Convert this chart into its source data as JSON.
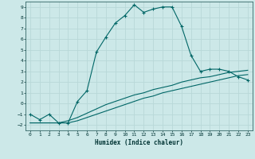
{
  "xlabel": "Humidex (Indice chaleur)",
  "bg_color": "#cce8e8",
  "grid_color": "#b8d8d8",
  "line_color": "#006666",
  "xlim": [
    -0.5,
    23.5
  ],
  "ylim": [
    -2.5,
    9.5
  ],
  "xticks": [
    0,
    1,
    2,
    3,
    4,
    5,
    6,
    7,
    8,
    9,
    10,
    11,
    12,
    13,
    14,
    15,
    16,
    17,
    18,
    19,
    20,
    21,
    22,
    23
  ],
  "yticks": [
    -2,
    -1,
    0,
    1,
    2,
    3,
    4,
    5,
    6,
    7,
    8,
    9
  ],
  "curve1_x": [
    0,
    1,
    2,
    3,
    4,
    5,
    6,
    7,
    8,
    9,
    10,
    11,
    12,
    13,
    14,
    15,
    16,
    17,
    18,
    19,
    20,
    21,
    22,
    23
  ],
  "curve1_y": [
    -1.0,
    -1.5,
    -1.0,
    -1.8,
    -1.8,
    0.2,
    1.2,
    4.8,
    6.2,
    7.5,
    8.2,
    9.2,
    8.5,
    8.8,
    9.0,
    9.0,
    7.2,
    4.5,
    3.0,
    3.2,
    3.2,
    3.0,
    2.5,
    2.2
  ],
  "curve2_x": [
    0,
    1,
    2,
    3,
    4,
    5,
    6,
    7,
    8,
    9,
    10,
    11,
    12,
    13,
    14,
    15,
    16,
    17,
    18,
    19,
    20,
    21,
    22,
    23
  ],
  "curve2_y": [
    -1.8,
    -1.8,
    -1.8,
    -1.8,
    -1.8,
    -1.6,
    -1.3,
    -1.0,
    -0.7,
    -0.4,
    -0.1,
    0.2,
    0.5,
    0.7,
    1.0,
    1.2,
    1.4,
    1.6,
    1.8,
    2.0,
    2.2,
    2.4,
    2.6,
    2.7
  ],
  "curve3_x": [
    0,
    1,
    2,
    3,
    4,
    5,
    6,
    7,
    8,
    9,
    10,
    11,
    12,
    13,
    14,
    15,
    16,
    17,
    18,
    19,
    20,
    21,
    22,
    23
  ],
  "curve3_y": [
    -1.8,
    -1.8,
    -1.8,
    -1.8,
    -1.6,
    -1.3,
    -0.9,
    -0.5,
    -0.1,
    0.2,
    0.5,
    0.8,
    1.0,
    1.3,
    1.5,
    1.7,
    2.0,
    2.2,
    2.4,
    2.5,
    2.7,
    2.9,
    3.0,
    3.1
  ]
}
